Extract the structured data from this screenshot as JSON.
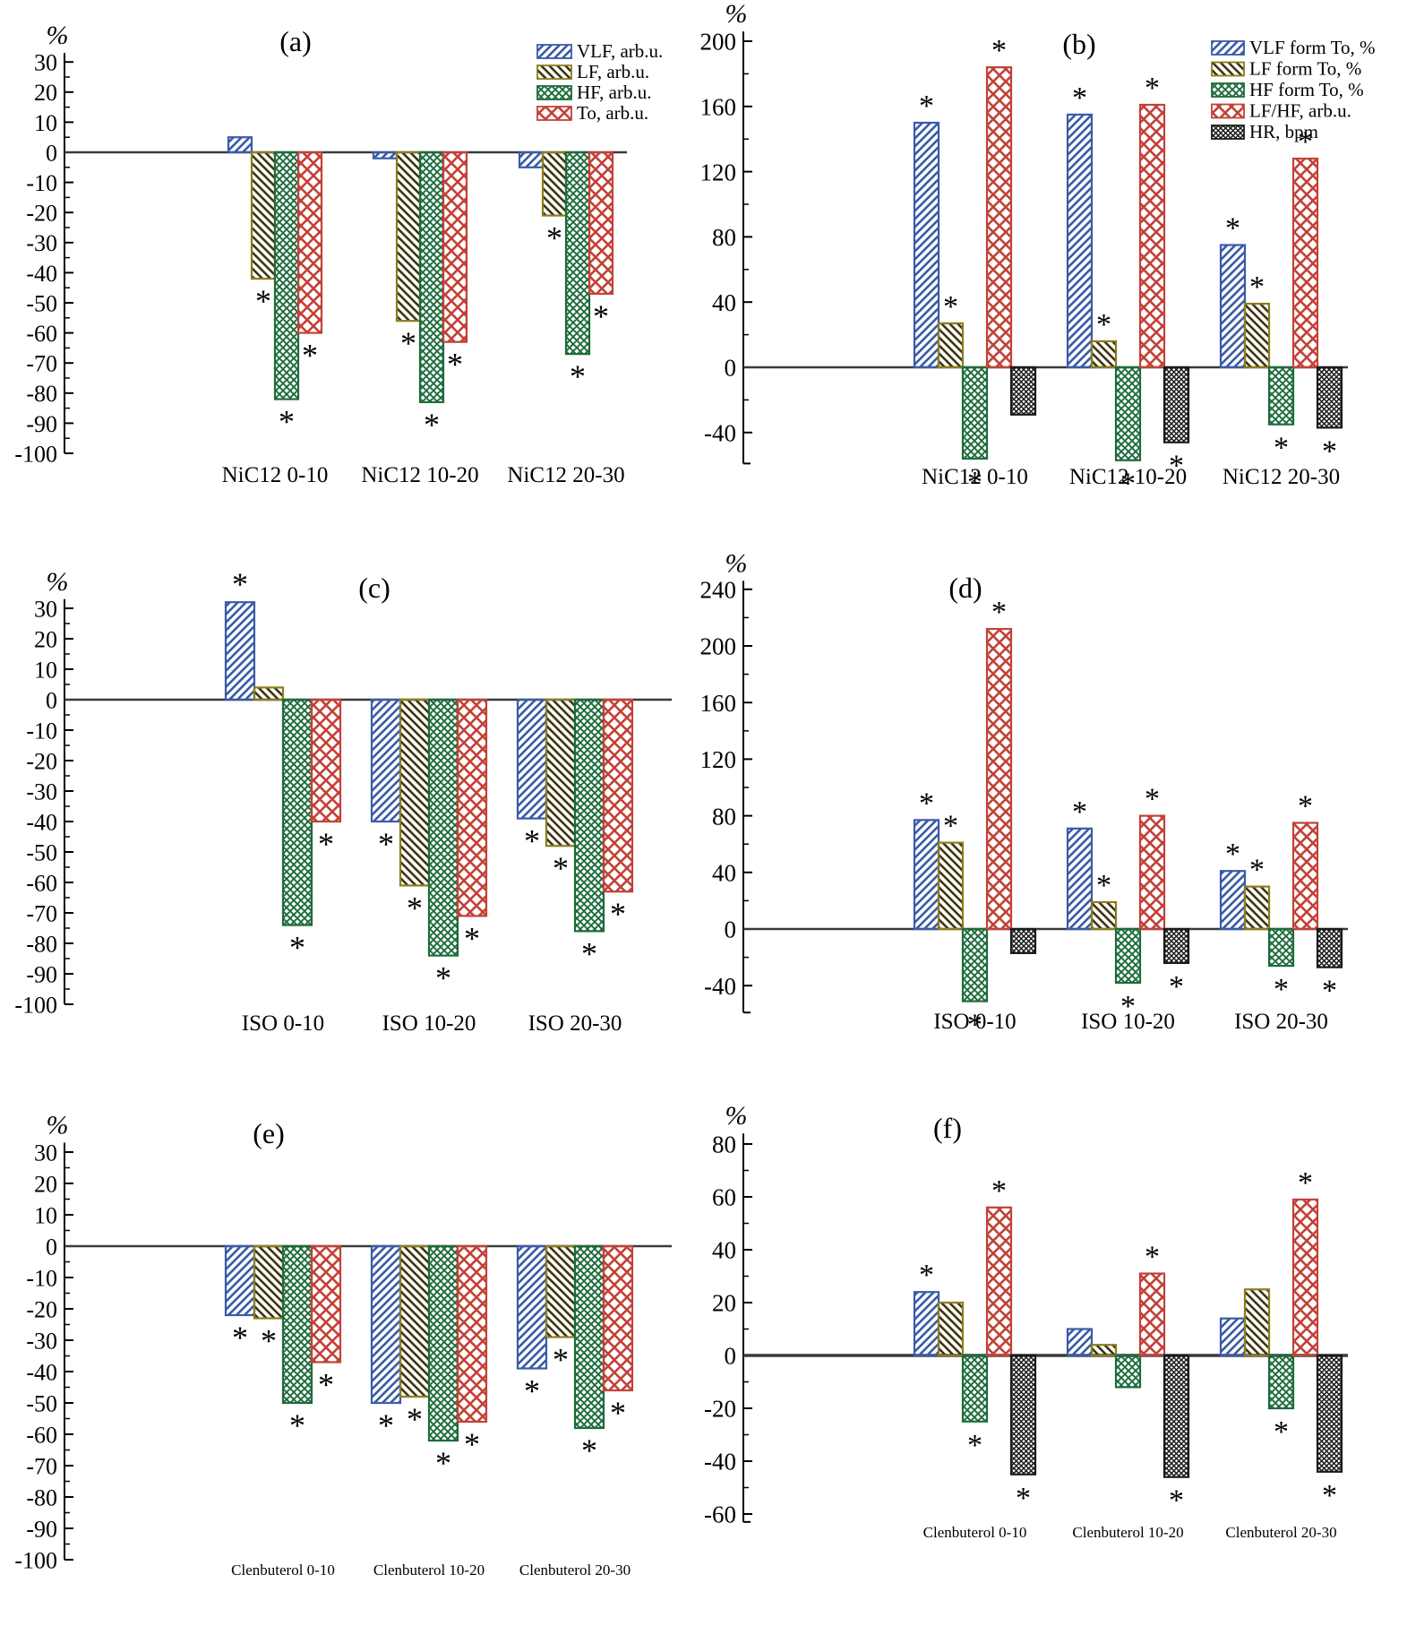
{
  "figure_title": "",
  "significance_marker": "*",
  "y_axis_unit": "%",
  "styles": {
    "vlf": {
      "color": "#3A5BA8",
      "line_color": "#3A5BA8",
      "hatch": "diagonal-up",
      "legend_icon": "blue-forward-hatch-swatch"
    },
    "lf": {
      "color": "#8B7D1E",
      "line_color": "#3E3512",
      "hatch": "diagonal-down",
      "legend_icon": "olive-back-hatch-swatch"
    },
    "hf": {
      "color": "#1D6B3B",
      "line_color": "#1D6B3B",
      "hatch": "crosshatch",
      "legend_icon": "green-crosshatch-swatch"
    },
    "to": {
      "color": "#C24238",
      "line_color": "#C24238",
      "hatch": "crosshatch-large",
      "legend_icon": "red-lattice-swatch"
    },
    "hr": {
      "color": "#1A1A1A",
      "line_color": "#1A1A1A",
      "hatch": "crosshatch-fine",
      "legend_icon": "black-crosshatch-swatch"
    }
  },
  "chart_data": [
    {
      "id": "a",
      "panel_label": "(a)",
      "type": "bar",
      "y_unit": "%",
      "axis": {
        "ymin": -100,
        "ymax": 30,
        "major_tick": 10,
        "minor_tick": 5
      },
      "categories": [
        "NiC12 0-10",
        "NiC12 10-20",
        "NiC12 20-30"
      ],
      "legend_visible": true,
      "series": [
        {
          "name": "VLF, arb.u.",
          "style": "vlf",
          "values": [
            5,
            -2,
            -5
          ],
          "significant": [
            false,
            false,
            false
          ]
        },
        {
          "name": "LF, arb.u.",
          "style": "lf",
          "values": [
            -42,
            -56,
            -21
          ],
          "significant": [
            true,
            true,
            true
          ]
        },
        {
          "name": "HF, arb.u.",
          "style": "hf",
          "values": [
            -82,
            -83,
            -67
          ],
          "significant": [
            true,
            true,
            true
          ]
        },
        {
          "name": "To, arb.u.",
          "style": "to",
          "values": [
            -60,
            -63,
            -47
          ],
          "significant": [
            true,
            true,
            true
          ]
        }
      ]
    },
    {
      "id": "b",
      "panel_label": "(b)",
      "type": "bar",
      "y_unit": "%",
      "axis": {
        "ymin": -40,
        "ymax": 200,
        "major_tick": 40,
        "minor_tick": 20
      },
      "categories": [
        "NiC12 0-10",
        "NiC12 10-20",
        "NiC12 20-30"
      ],
      "legend_visible": true,
      "series": [
        {
          "name": "VLF form To, %",
          "style": "vlf",
          "values": [
            150,
            155,
            75
          ],
          "significant": [
            true,
            true,
            true
          ]
        },
        {
          "name": "LF form To, %",
          "style": "lf",
          "values": [
            27,
            16,
            39
          ],
          "significant": [
            true,
            true,
            true
          ]
        },
        {
          "name": "HF form To, %",
          "style": "hf",
          "values": [
            -56,
            -57,
            -35
          ],
          "significant": [
            true,
            true,
            true
          ]
        },
        {
          "name": "LF/HF, arb.u.",
          "style": "to",
          "values": [
            184,
            161,
            128
          ],
          "significant": [
            true,
            true,
            true
          ]
        },
        {
          "name": "HR, bpm",
          "style": "hr",
          "values": [
            -29,
            -46,
            -37
          ],
          "significant": [
            false,
            true,
            true
          ]
        }
      ]
    },
    {
      "id": "c",
      "panel_label": "(c)",
      "type": "bar",
      "y_unit": "%",
      "axis": {
        "ymin": -100,
        "ymax": 30,
        "major_tick": 10,
        "minor_tick": 5
      },
      "categories": [
        "ISO 0-10",
        "ISO 10-20",
        "ISO 20-30"
      ],
      "legend_visible": false,
      "series": [
        {
          "name": "VLF, arb.u.",
          "style": "vlf",
          "values": [
            32,
            -40,
            -39
          ],
          "significant": [
            true,
            true,
            true
          ]
        },
        {
          "name": "LF, arb.u.",
          "style": "lf",
          "values": [
            4,
            -61,
            -48
          ],
          "significant": [
            false,
            true,
            true
          ]
        },
        {
          "name": "HF, arb.u.",
          "style": "hf",
          "values": [
            -74,
            -84,
            -76
          ],
          "significant": [
            true,
            true,
            true
          ]
        },
        {
          "name": "To, arb.u.",
          "style": "to",
          "values": [
            -40,
            -71,
            -63
          ],
          "significant": [
            true,
            true,
            true
          ]
        }
      ]
    },
    {
      "id": "d",
      "panel_label": "(d)",
      "type": "bar",
      "y_unit": "%",
      "axis": {
        "ymin": -40,
        "ymax": 240,
        "major_tick": 40,
        "minor_tick": 20
      },
      "categories": [
        "ISO 0-10",
        "ISO 10-20",
        "ISO 20-30"
      ],
      "legend_visible": false,
      "series": [
        {
          "name": "VLF form To, %",
          "style": "vlf",
          "values": [
            77,
            71,
            41
          ],
          "significant": [
            true,
            true,
            true
          ]
        },
        {
          "name": "LF form To, %",
          "style": "lf",
          "values": [
            61,
            19,
            30
          ],
          "significant": [
            true,
            true,
            true
          ]
        },
        {
          "name": "HF form To, %",
          "style": "hf",
          "values": [
            -51,
            -38,
            -26
          ],
          "significant": [
            true,
            true,
            true
          ]
        },
        {
          "name": "LF/HF, arb.u.",
          "style": "to",
          "values": [
            212,
            80,
            75
          ],
          "significant": [
            true,
            true,
            true
          ]
        },
        {
          "name": "HR, bpm",
          "style": "hr",
          "values": [
            -17,
            -24,
            -27
          ],
          "significant": [
            false,
            true,
            true
          ]
        }
      ]
    },
    {
      "id": "e",
      "panel_label": "(e)",
      "type": "bar",
      "y_unit": "%",
      "axis": {
        "ymin": -100,
        "ymax": 30,
        "major_tick": 10,
        "minor_tick": 5
      },
      "categories": [
        "Clenbuterol 0-10",
        "Clenbuterol 10-20",
        "Clenbuterol 20-30"
      ],
      "legend_visible": false,
      "series": [
        {
          "name": "VLF, arb.u.",
          "style": "vlf",
          "values": [
            -22,
            -50,
            -39
          ],
          "significant": [
            true,
            true,
            true
          ]
        },
        {
          "name": "LF, arb.u.",
          "style": "lf",
          "values": [
            -23,
            -48,
            -29
          ],
          "significant": [
            true,
            true,
            true
          ]
        },
        {
          "name": "HF, arb.u.",
          "style": "hf",
          "values": [
            -50,
            -62,
            -58
          ],
          "significant": [
            true,
            true,
            true
          ]
        },
        {
          "name": "To, arb.u.",
          "style": "to",
          "values": [
            -37,
            -56,
            -46
          ],
          "significant": [
            true,
            true,
            true
          ]
        }
      ]
    },
    {
      "id": "f",
      "panel_label": "(f)",
      "type": "bar",
      "y_unit": "%",
      "axis": {
        "ymin": -60,
        "ymax": 80,
        "major_tick": 20,
        "minor_tick": 10
      },
      "categories": [
        "Clenbuterol 0-10",
        "Clenbuterol 10-20",
        "Clenbuterol 20-30"
      ],
      "legend_visible": false,
      "series": [
        {
          "name": "VLF form To, %",
          "style": "vlf",
          "values": [
            24,
            10,
            14
          ],
          "significant": [
            true,
            false,
            false
          ]
        },
        {
          "name": "LF form To, %",
          "style": "lf",
          "values": [
            20,
            4,
            25
          ],
          "significant": [
            false,
            false,
            false
          ]
        },
        {
          "name": "HF form To, %",
          "style": "hf",
          "values": [
            -25,
            -12,
            -20
          ],
          "significant": [
            true,
            false,
            true
          ]
        },
        {
          "name": "LF/HF, arb.u.",
          "style": "to",
          "values": [
            56,
            31,
            59
          ],
          "significant": [
            true,
            true,
            true
          ]
        },
        {
          "name": "HR, bpm",
          "style": "hr",
          "values": [
            -45,
            -46,
            -44
          ],
          "significant": [
            true,
            true,
            true
          ]
        }
      ]
    }
  ]
}
